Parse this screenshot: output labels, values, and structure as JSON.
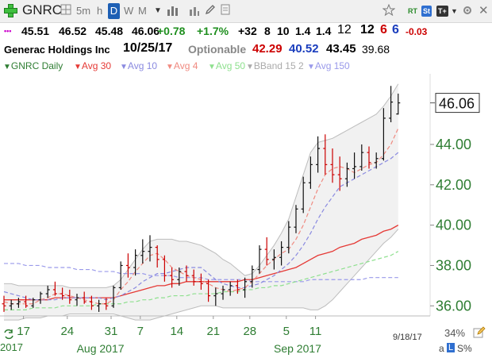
{
  "toolbar": {
    "symbol": "GNRC",
    "intervals": [
      "5m",
      "h",
      "D",
      "W",
      "M"
    ],
    "rt_label": "RT",
    "st_label": "St",
    "tt_label": "T+"
  },
  "quote": {
    "dots": "•••",
    "open": "45.51",
    "high": "46.52",
    "low": "45.48",
    "last": "46.06",
    "change": "+0.78",
    "change_pct": "+1.7%",
    "v1": "+32",
    "v2": "8",
    "v3": "10",
    "v4": "1.4",
    "v5": "1.4",
    "v6": "12",
    "v7": "12",
    "v8": "6",
    "v9": "6",
    "v10": "-0.03",
    "company": "Generac Holdings Inc",
    "date": "10/25/17",
    "optionable": "Optionable",
    "n1": "42.29",
    "n2": "40.52",
    "n3": "43.45",
    "n4": "39.68"
  },
  "legend": {
    "title": "GNRC Daily",
    "avg30": "Avg 30",
    "avg10": "Avg 10",
    "avg4": "Avg 4",
    "avg50": "Avg 50",
    "bband": "BBand 15 2",
    "avg150": "Avg 150"
  },
  "colors": {
    "accent": "#1d5fb4",
    "up": "#1f8f1f",
    "down": "#cc0000",
    "blue": "#1a3dbd",
    "axis": "#2e7d32",
    "avg30": "#e53935",
    "avg10": "#8a8ae0",
    "avg4": "#f08a80",
    "avg50": "#8ee08e",
    "avg150": "#9a9aea",
    "bband_fill": "#f1f1f1",
    "bband_line": "#bdbdbd"
  },
  "footer": {
    "last_date": "9/18/17",
    "zoom": "34%",
    "mode_a": "a",
    "mode_l": "L",
    "mode_s": "S%",
    "year_left": "2017"
  },
  "chart_data": {
    "type": "line",
    "symbol": "GNRC",
    "period": "Daily",
    "y_range": [
      35.5,
      47.5
    ],
    "y_ticks": [
      "36.00",
      "38.00",
      "40.00",
      "42.00",
      "44.00"
    ],
    "last_price_label": "46.06",
    "x_tick_labels": [
      "17",
      "24",
      "31",
      "7",
      "14",
      "21",
      "28",
      "5",
      "11"
    ],
    "month_labels": [
      "Aug 2017",
      "Sep 2017"
    ],
    "bars": [
      {
        "o": 36.1,
        "h": 36.5,
        "l": 35.7,
        "c": 36.0
      },
      {
        "o": 36.0,
        "h": 36.3,
        "l": 35.8,
        "c": 36.1
      },
      {
        "o": 36.1,
        "h": 36.4,
        "l": 35.9,
        "c": 36.2
      },
      {
        "o": 36.2,
        "h": 36.5,
        "l": 35.9,
        "c": 36.0
      },
      {
        "o": 36.0,
        "h": 36.4,
        "l": 35.9,
        "c": 36.3
      },
      {
        "o": 36.3,
        "h": 36.7,
        "l": 36.1,
        "c": 36.6
      },
      {
        "o": 36.6,
        "h": 37.0,
        "l": 36.4,
        "c": 36.8
      },
      {
        "o": 36.8,
        "h": 37.2,
        "l": 36.5,
        "c": 36.6
      },
      {
        "o": 36.6,
        "h": 36.9,
        "l": 36.3,
        "c": 36.5
      },
      {
        "o": 36.5,
        "h": 36.8,
        "l": 36.1,
        "c": 36.3
      },
      {
        "o": 36.3,
        "h": 36.6,
        "l": 36.0,
        "c": 36.4
      },
      {
        "o": 36.4,
        "h": 36.7,
        "l": 36.1,
        "c": 36.2
      },
      {
        "o": 36.2,
        "h": 36.5,
        "l": 35.8,
        "c": 36.0
      },
      {
        "o": 36.0,
        "h": 36.3,
        "l": 35.7,
        "c": 36.1
      },
      {
        "o": 36.1,
        "h": 36.4,
        "l": 35.8,
        "c": 36.0
      },
      {
        "o": 36.0,
        "h": 37.0,
        "l": 35.9,
        "c": 36.9
      },
      {
        "o": 36.9,
        "h": 38.2,
        "l": 36.8,
        "c": 38.0
      },
      {
        "o": 38.0,
        "h": 38.6,
        "l": 37.4,
        "c": 37.9
      },
      {
        "o": 37.9,
        "h": 38.8,
        "l": 37.5,
        "c": 38.5
      },
      {
        "o": 38.5,
        "h": 39.3,
        "l": 38.1,
        "c": 38.7
      },
      {
        "o": 38.7,
        "h": 39.5,
        "l": 38.2,
        "c": 38.9
      },
      {
        "o": 38.9,
        "h": 39.0,
        "l": 37.9,
        "c": 38.3
      },
      {
        "o": 38.3,
        "h": 38.5,
        "l": 37.2,
        "c": 37.5
      },
      {
        "o": 37.5,
        "h": 37.9,
        "l": 36.9,
        "c": 37.3
      },
      {
        "o": 37.3,
        "h": 37.9,
        "l": 37.0,
        "c": 37.7
      },
      {
        "o": 37.7,
        "h": 38.0,
        "l": 37.2,
        "c": 37.5
      },
      {
        "o": 37.5,
        "h": 37.8,
        "l": 37.0,
        "c": 37.2
      },
      {
        "o": 37.2,
        "h": 37.6,
        "l": 36.8,
        "c": 37.1
      },
      {
        "o": 37.1,
        "h": 37.3,
        "l": 36.2,
        "c": 36.5
      },
      {
        "o": 36.5,
        "h": 36.9,
        "l": 36.0,
        "c": 36.6
      },
      {
        "o": 36.6,
        "h": 37.0,
        "l": 36.3,
        "c": 36.8
      },
      {
        "o": 36.8,
        "h": 37.2,
        "l": 36.5,
        "c": 37.0
      },
      {
        "o": 37.0,
        "h": 37.3,
        "l": 36.6,
        "c": 36.8
      },
      {
        "o": 36.8,
        "h": 37.4,
        "l": 36.4,
        "c": 37.2
      },
      {
        "o": 37.2,
        "h": 38.0,
        "l": 36.9,
        "c": 37.8
      },
      {
        "o": 37.8,
        "h": 39.0,
        "l": 37.6,
        "c": 38.8
      },
      {
        "o": 38.8,
        "h": 39.4,
        "l": 38.0,
        "c": 38.3
      },
      {
        "o": 38.3,
        "h": 38.8,
        "l": 37.8,
        "c": 38.4
      },
      {
        "o": 38.4,
        "h": 39.2,
        "l": 38.0,
        "c": 38.9
      },
      {
        "o": 38.9,
        "h": 40.2,
        "l": 38.6,
        "c": 39.9
      },
      {
        "o": 39.9,
        "h": 41.0,
        "l": 39.6,
        "c": 40.8
      },
      {
        "o": 40.8,
        "h": 42.4,
        "l": 40.6,
        "c": 42.1
      },
      {
        "o": 42.1,
        "h": 43.4,
        "l": 41.8,
        "c": 43.0
      },
      {
        "o": 43.0,
        "h": 44.4,
        "l": 42.6,
        "c": 43.8
      },
      {
        "o": 43.8,
        "h": 44.5,
        "l": 42.5,
        "c": 43.0
      },
      {
        "o": 43.0,
        "h": 43.8,
        "l": 42.1,
        "c": 42.5
      },
      {
        "o": 42.5,
        "h": 43.4,
        "l": 41.7,
        "c": 42.3
      },
      {
        "o": 42.3,
        "h": 43.1,
        "l": 41.9,
        "c": 42.8
      },
      {
        "o": 42.8,
        "h": 43.6,
        "l": 42.3,
        "c": 42.9
      },
      {
        "o": 42.9,
        "h": 44.0,
        "l": 42.7,
        "c": 43.6
      },
      {
        "o": 43.6,
        "h": 43.9,
        "l": 42.8,
        "c": 43.1
      },
      {
        "o": 43.1,
        "h": 43.6,
        "l": 42.8,
        "c": 43.3
      },
      {
        "o": 43.3,
        "h": 45.8,
        "l": 43.2,
        "c": 45.3
      },
      {
        "o": 45.3,
        "h": 46.9,
        "l": 45.1,
        "c": 46.1
      },
      {
        "o": 45.51,
        "h": 46.52,
        "l": 45.48,
        "c": 46.06
      }
    ],
    "avg4": [
      36.2,
      36.1,
      36.1,
      36.1,
      36.1,
      36.3,
      36.4,
      36.6,
      36.6,
      36.5,
      36.4,
      36.3,
      36.2,
      36.1,
      36.1,
      36.3,
      36.8,
      37.2,
      37.7,
      38.1,
      38.5,
      38.6,
      38.3,
      37.9,
      37.7,
      37.5,
      37.4,
      37.3,
      37.1,
      36.9,
      36.8,
      36.7,
      36.8,
      36.9,
      37.2,
      37.6,
      38.0,
      38.3,
      38.6,
      38.8,
      39.3,
      40.0,
      40.9,
      41.8,
      42.5,
      42.8,
      42.9,
      42.8,
      42.6,
      42.8,
      43.0,
      43.1,
      43.5,
      44.0,
      44.8
    ],
    "avg10": [
      36.7,
      36.6,
      36.5,
      36.4,
      36.3,
      36.3,
      36.3,
      36.3,
      36.4,
      36.4,
      36.4,
      36.4,
      36.4,
      36.4,
      36.3,
      36.4,
      36.5,
      36.7,
      36.9,
      37.2,
      37.4,
      37.6,
      37.6,
      37.7,
      37.8,
      37.9,
      37.9,
      37.9,
      37.6,
      37.3,
      37.1,
      37.0,
      36.9,
      36.9,
      37.0,
      37.1,
      37.3,
      37.5,
      37.8,
      38.1,
      38.5,
      39.0,
      39.6,
      40.3,
      40.9,
      41.4,
      41.9,
      42.1,
      42.3,
      42.5,
      42.7,
      42.9,
      43.1,
      43.3,
      43.6
    ],
    "avg30": [
      36.3,
      36.3,
      36.3,
      36.3,
      36.3,
      36.3,
      36.3,
      36.4,
      36.4,
      36.4,
      36.4,
      36.4,
      36.4,
      36.4,
      36.4,
      36.4,
      36.5,
      36.6,
      36.7,
      36.8,
      36.9,
      37.0,
      37.0,
      37.1,
      37.1,
      37.2,
      37.2,
      37.2,
      37.2,
      37.2,
      37.2,
      37.2,
      37.2,
      37.3,
      37.3,
      37.4,
      37.5,
      37.6,
      37.7,
      37.8,
      37.9,
      38.1,
      38.3,
      38.5,
      38.6,
      38.7,
      38.9,
      39.0,
      39.1,
      39.3,
      39.4,
      39.5,
      39.7,
      39.8,
      40.0
    ],
    "avg50": [
      35.8,
      35.8,
      35.8,
      35.8,
      35.9,
      35.9,
      35.9,
      35.9,
      36.0,
      36.0,
      36.0,
      36.0,
      36.0,
      36.1,
      36.1,
      36.1,
      36.1,
      36.2,
      36.2,
      36.3,
      36.3,
      36.4,
      36.4,
      36.5,
      36.5,
      36.5,
      36.6,
      36.6,
      36.6,
      36.6,
      36.7,
      36.7,
      36.7,
      36.8,
      36.8,
      36.9,
      36.9,
      37.0,
      37.0,
      37.1,
      37.2,
      37.3,
      37.4,
      37.5,
      37.6,
      37.7,
      37.8,
      37.9,
      38.0,
      38.1,
      38.2,
      38.3,
      38.4,
      38.5,
      38.7
    ],
    "avg150": [
      38.1,
      38.1,
      38.1,
      38.0,
      38.0,
      38.0,
      37.9,
      37.9,
      37.9,
      37.9,
      37.8,
      37.8,
      37.8,
      37.7,
      37.7,
      37.7,
      37.6,
      37.6,
      37.6,
      37.6,
      37.5,
      37.5,
      37.5,
      37.5,
      37.4,
      37.4,
      37.4,
      37.4,
      37.3,
      37.3,
      37.3,
      37.3,
      37.3,
      37.3,
      37.2,
      37.2,
      37.2,
      37.2,
      37.2,
      37.2,
      37.2,
      37.2,
      37.3,
      37.3,
      37.3,
      37.3,
      37.3,
      37.3,
      37.3,
      37.3,
      37.4,
      37.4,
      37.4,
      37.4,
      37.4
    ],
    "bband_upper": [
      37.1,
      37.1,
      37.0,
      37.0,
      37.0,
      37.0,
      37.0,
      37.0,
      37.0,
      36.9,
      36.9,
      36.9,
      36.9,
      36.9,
      36.9,
      37.0,
      37.3,
      37.8,
      38.3,
      38.8,
      39.2,
      39.3,
      39.3,
      39.3,
      39.2,
      39.2,
      39.1,
      39.0,
      38.8,
      38.6,
      38.3,
      38.1,
      37.8,
      37.5,
      37.6,
      38.0,
      38.5,
      39.0,
      39.6,
      40.3,
      41.4,
      42.5,
      43.6,
      44.1,
      44.2,
      44.3,
      44.5,
      44.7,
      44.9,
      45.1,
      45.3,
      45.5,
      45.9,
      46.4,
      47.0
    ],
    "bband_lower": [
      35.3,
      35.3,
      35.3,
      35.4,
      35.4,
      35.4,
      35.5,
      35.5,
      35.5,
      35.6,
      35.6,
      35.6,
      35.6,
      35.6,
      35.6,
      35.6,
      35.5,
      35.4,
      35.3,
      35.3,
      35.3,
      35.4,
      35.5,
      35.6,
      35.7,
      35.8,
      35.9,
      36.0,
      36.0,
      36.0,
      35.9,
      35.9,
      35.9,
      35.9,
      35.9,
      35.9,
      35.9,
      35.9,
      35.9,
      35.9,
      35.9,
      35.9,
      35.8,
      35.8,
      36.0,
      36.3,
      36.7,
      37.1,
      37.5,
      37.9,
      38.3,
      38.7,
      39.1,
      39.4,
      39.8
    ],
    "grid": false
  }
}
